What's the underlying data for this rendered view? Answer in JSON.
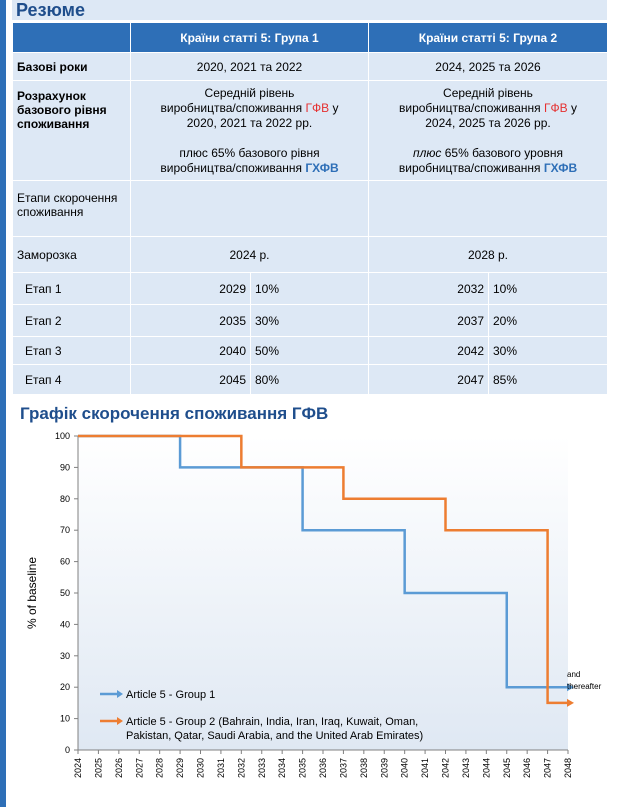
{
  "title": "Резюме",
  "table": {
    "headers": [
      "",
      "Країни статті 5: Група 1",
      "Країни статті 5: Група 2"
    ],
    "base_years": {
      "label": "Базові роки",
      "g1": "2020, 2021 та 2022",
      "g2": "2024, 2025 та 2026"
    },
    "baseline": {
      "label": "Розрахунок базового рівня споживання",
      "g1": {
        "line1a": "Середній рівень",
        "line1b": "виробництва/споживання ",
        "hl1": "ГФВ",
        "line1c": " у",
        "line1d": "2020, 2021 та 2022 рр.",
        "line2a": "плюс 65% базового рівня",
        "line2b": "виробництва/споживання ",
        "hl2": "ГХФВ"
      },
      "g2": {
        "line1a": "Середній рівень",
        "line1b": "виробництва/споживання ",
        "hl1": "ГФВ",
        "line1c": " у",
        "line1d": "2024, 2025 та 2026 рр.",
        "line2a_it": "плюс",
        "line2a": " 65% базового уровня",
        "line2b": "виробництва/споживання ",
        "hl2": "ГХФВ"
      }
    },
    "stages_label": "Етапи скорочення споживання",
    "freeze": {
      "label": "Заморозка",
      "g1": "2024 р.",
      "g2": "2028 р."
    },
    "steps": [
      {
        "label": "Етап 1",
        "g1_year": "2029",
        "g1_pct": "10%",
        "g2_year": "2032",
        "g2_pct": "10%"
      },
      {
        "label": "Етап 2",
        "g1_year": "2035",
        "g1_pct": "30%",
        "g2_year": "2037",
        "g2_pct": "20%"
      },
      {
        "label": "Етап 3",
        "g1_year": "2040",
        "g1_pct": "50%",
        "g2_year": "2042",
        "g2_pct": "30%"
      },
      {
        "label": "Етап 4",
        "g1_year": "2045",
        "g1_pct": "80%",
        "g2_year": "2047",
        "g2_pct": "85%"
      }
    ]
  },
  "chart_title": "Графік скорочення споживання ГФВ",
  "chart_data": {
    "type": "line",
    "ylabel": "% of baseline",
    "xlabel": "",
    "ylim": [
      0,
      100
    ],
    "xlim": [
      2024,
      2048
    ],
    "yticks": [
      0,
      10,
      20,
      30,
      40,
      50,
      60,
      70,
      80,
      90,
      100
    ],
    "xticks": [
      "2024",
      "2025",
      "2026",
      "2027",
      "2028",
      "2029",
      "2030",
      "2031",
      "2032",
      "2033",
      "2034",
      "2035",
      "2036",
      "2037",
      "2038",
      "2039",
      "2040",
      "2041",
      "2042",
      "2043",
      "2044",
      "2045",
      "2046",
      "2047",
      "2048"
    ],
    "grid": false,
    "legend_position": "bottom-left",
    "annotation": {
      "line1": "and",
      "line2": "thereafter"
    },
    "series": [
      {
        "name": "Article 5 - Group 1",
        "color": "#5b9bd5",
        "x": [
          2024,
          2029,
          2029,
          2035,
          2035,
          2040,
          2040,
          2045,
          2045,
          2048
        ],
        "y": [
          100,
          100,
          90,
          90,
          70,
          70,
          50,
          50,
          20,
          20
        ]
      },
      {
        "name_line1": "Article 5 - Group 2 (Bahrain, India, Iran, Iraq, Kuwait, Oman,",
        "name_line2": "Pakistan, Qatar, Saudi Arabia, and the United Arab Emirates)",
        "color": "#ed7d31",
        "x": [
          2024,
          2032,
          2032,
          2037,
          2037,
          2042,
          2042,
          2047,
          2047,
          2048
        ],
        "y": [
          100,
          100,
          90,
          90,
          80,
          80,
          70,
          70,
          15,
          15
        ]
      }
    ]
  }
}
